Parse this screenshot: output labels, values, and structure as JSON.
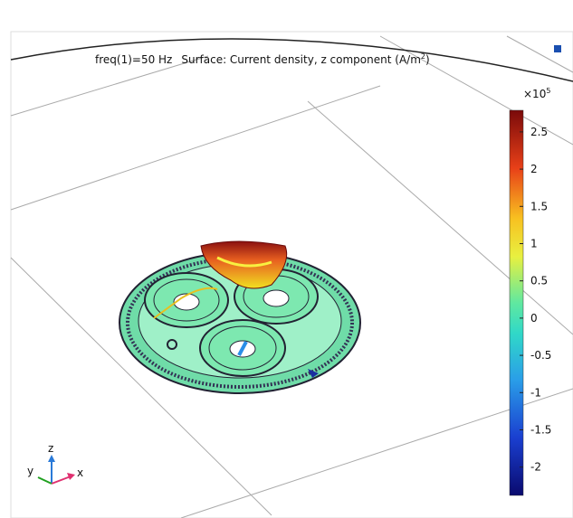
{
  "header": {
    "freq": "freq(1)=50 Hz",
    "surface": "Surface: Current density, z component (A/m",
    "unit_sup": "2",
    "unit_close": ")"
  },
  "colorbar": {
    "multiplier": "×10",
    "multiplier_sup": "5",
    "range": [
      -2.38,
      2.79
    ],
    "ticks": [
      2.5,
      2,
      1.5,
      1,
      0.5,
      0,
      -0.5,
      -1,
      -1.5,
      -2
    ]
  },
  "triad": {
    "z": "z",
    "y": "y",
    "x": "x"
  }
}
